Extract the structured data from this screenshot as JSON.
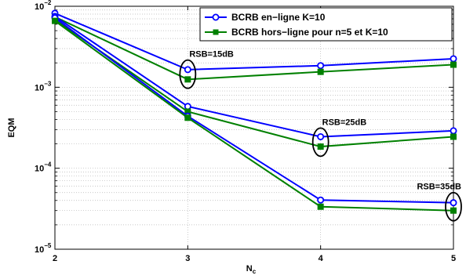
{
  "chart_data": {
    "type": "line",
    "xlabel": "N",
    "xlabel_sub": "c",
    "ylabel": "EQM",
    "y_scale": "log",
    "xlim": [
      2,
      5
    ],
    "ylim": [
      1e-05,
      0.01
    ],
    "x_ticks": [
      "2",
      "3",
      "4",
      "5"
    ],
    "y_ticks": [
      {
        "base": "10",
        "exp": "−5"
      },
      {
        "base": "10",
        "exp": "−4"
      },
      {
        "base": "10",
        "exp": "−3"
      },
      {
        "base": "10",
        "exp": "−2"
      }
    ],
    "grid": "dotted, major and minor",
    "legend_position": "top-right",
    "colors": {
      "blue": "#0000ff",
      "green": "#008000"
    },
    "series": [
      {
        "name": "BCRB en−ligne K=10",
        "color": "#0000ff",
        "marker": "circle",
        "snr": "RSB=15dB",
        "x": [
          2,
          3,
          4,
          5
        ],
        "y": [
          0.0082,
          0.00165,
          0.00185,
          0.00225
        ]
      },
      {
        "name": "BCRB hors−ligne pour n=5 et K=10",
        "color": "#008000",
        "marker": "square",
        "snr": "RSB=15dB",
        "x": [
          2,
          3,
          4,
          5
        ],
        "y": [
          0.0074,
          0.00125,
          0.00155,
          0.0019
        ]
      },
      {
        "color": "#0000ff",
        "marker": "circle",
        "snr": "RSB=25dB",
        "x": [
          2,
          3,
          4,
          5
        ],
        "y": [
          0.0075,
          0.00058,
          0.000245,
          0.00029
        ]
      },
      {
        "color": "#008000",
        "marker": "square",
        "snr": "RSB=25dB",
        "x": [
          2,
          3,
          4,
          5
        ],
        "y": [
          0.0068,
          0.0005,
          0.000185,
          0.000245
        ]
      },
      {
        "color": "#0000ff",
        "marker": "circle",
        "snr": "RSB=35dB",
        "x": [
          2,
          3,
          4,
          5
        ],
        "y": [
          0.0072,
          0.00044,
          4.05e-05,
          3.75e-05
        ]
      },
      {
        "color": "#008000",
        "marker": "square",
        "snr": "RSB=35dB",
        "x": [
          2,
          3,
          4,
          5
        ],
        "y": [
          0.0066,
          0.00042,
          3.35e-05,
          3e-05
        ]
      }
    ],
    "annotations": [
      {
        "text": "RSB=15dB",
        "x": 3,
        "y": 0.00145
      },
      {
        "text": "RSB=25dB",
        "x": 4,
        "y": 0.00021
      },
      {
        "text": "RSB=35dB",
        "x": 5,
        "y": 3.35e-05
      }
    ]
  }
}
